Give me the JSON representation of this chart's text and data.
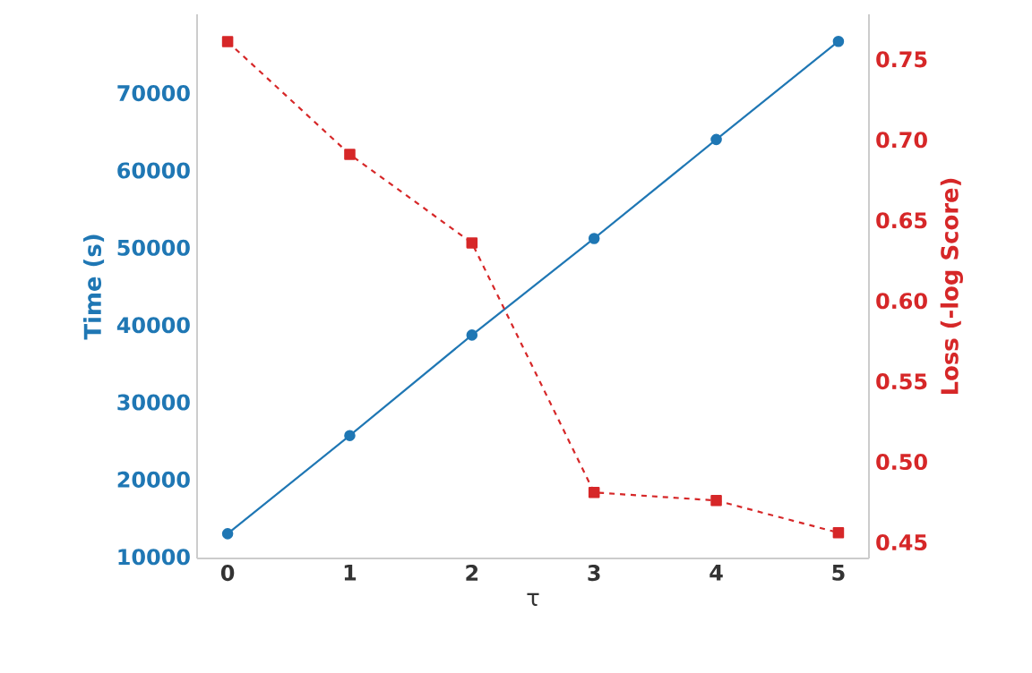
{
  "chart_data": {
    "type": "line",
    "xlabel": "τ",
    "ylabel": "Time (s)",
    "y2label": "Loss (-log Score)",
    "x": [
      0,
      1,
      2,
      3,
      4,
      5
    ],
    "xlim": [
      -0.25,
      5.25
    ],
    "xticks": [
      0,
      1,
      2,
      3,
      4,
      5
    ],
    "ylim": [
      9800,
      80200
    ],
    "yticks": [
      10000,
      20000,
      30000,
      40000,
      50000,
      60000,
      70000
    ],
    "y2lim": [
      0.44,
      0.778
    ],
    "y2ticks": [
      0.45,
      {
        "value": 0.5,
        "label": "0.50"
      },
      0.55,
      {
        "value": 0.6,
        "label": "0.60"
      },
      0.65,
      {
        "value": 0.7,
        "label": "0.70"
      },
      0.75
    ],
    "grid": false,
    "series": [
      {
        "color": "#1f77b4",
        "marker": "circle",
        "line_style": "solid",
        "values": [
          13000,
          25700,
          38700,
          51200,
          64000,
          76700
        ]
      },
      {
        "color": "#d62728",
        "marker": "square",
        "line_style": "dashed",
        "axis": "y2",
        "values": [
          0.761,
          0.691,
          0.636,
          0.481,
          0.476,
          0.456
        ]
      }
    ]
  }
}
